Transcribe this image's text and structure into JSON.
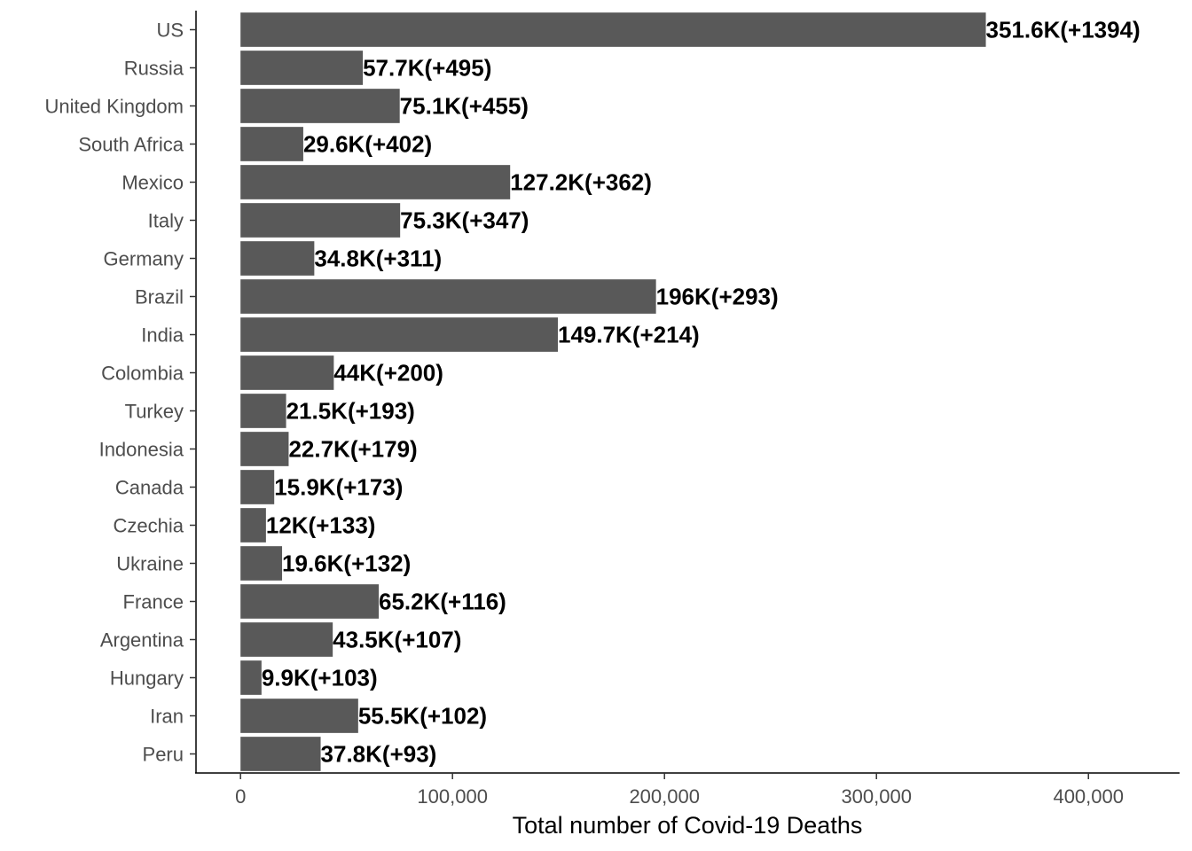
{
  "chart_data": {
    "type": "bar",
    "orientation": "horizontal",
    "categories": [
      "US",
      "Russia",
      "United Kingdom",
      "South Africa",
      "Mexico",
      "Italy",
      "Germany",
      "Brazil",
      "India",
      "Colombia",
      "Turkey",
      "Indonesia",
      "Canada",
      "Czechia",
      "Ukraine",
      "France",
      "Argentina",
      "Hungary",
      "Iran",
      "Peru"
    ],
    "values": [
      351600,
      57700,
      75100,
      29600,
      127200,
      75300,
      34800,
      196000,
      149700,
      44000,
      21500,
      22700,
      15900,
      12000,
      19600,
      65200,
      43500,
      9900,
      55500,
      37800
    ],
    "data_labels": [
      "351.6K(+1394)",
      "57.7K(+495)",
      "75.1K(+455)",
      "29.6K(+402)",
      "127.2K(+362)",
      "75.3K(+347)",
      "34.8K(+311)",
      "196K(+293)",
      "149.7K(+214)",
      "44K(+200)",
      "21.5K(+193)",
      "22.7K(+179)",
      "15.9K(+173)",
      "12K(+133)",
      "19.6K(+132)",
      "65.2K(+116)",
      "43.5K(+107)",
      "9.9K(+103)",
      "55.5K(+102)",
      "37.8K(+93)"
    ],
    "xlabel": "Total number of Covid-19 Deaths",
    "ylabel": "",
    "title": "",
    "xlim": [
      -21000,
      443000
    ],
    "xticks": [
      0,
      100000,
      200000,
      300000,
      400000
    ],
    "xtick_labels": [
      "0",
      "100,000",
      "200,000",
      "300,000",
      "400,000"
    ],
    "grid": false,
    "bar_color": "#595959"
  }
}
